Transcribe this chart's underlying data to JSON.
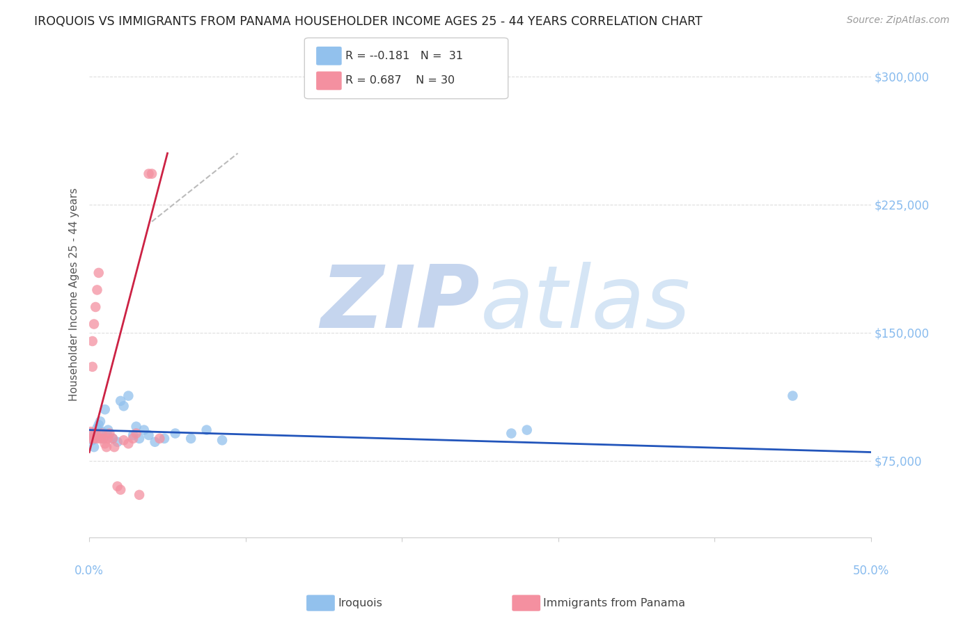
{
  "title": "IROQUOIS VS IMMIGRANTS FROM PANAMA HOUSEHOLDER INCOME AGES 25 - 44 YEARS CORRELATION CHART",
  "source": "Source: ZipAtlas.com",
  "ylabel": "Householder Income Ages 25 - 44 years",
  "yticks": [
    75000,
    150000,
    225000,
    300000
  ],
  "ytick_labels": [
    "$75,000",
    "$150,000",
    "$225,000",
    "$300,000"
  ],
  "xlim": [
    0.0,
    0.5
  ],
  "ylim": [
    30000,
    315000
  ],
  "blue_color": "#92C1ED",
  "pink_color": "#F490A0",
  "blue_line_color": "#2255BB",
  "pink_line_color": "#CC2244",
  "dash_color": "#BBBBBB",
  "watermark_zip": "ZIP",
  "watermark_atlas": "atlas",
  "watermark_color": "#D0DFF5",
  "background_color": "#FFFFFF",
  "grid_color": "#DDDDDD",
  "tick_color": "#88BBEE",
  "ylabel_color": "#555555",
  "title_color": "#222222",
  "source_color": "#999999",
  "legend_r_blue": "-0.181",
  "legend_n_blue": "31",
  "legend_r_pink": "0.687",
  "legend_n_pink": "30",
  "blue_x": [
    0.001,
    0.002,
    0.003,
    0.004,
    0.005,
    0.006,
    0.007,
    0.008,
    0.009,
    0.01,
    0.011,
    0.012,
    0.015,
    0.018,
    0.02,
    0.022,
    0.025,
    0.028,
    0.03,
    0.032,
    0.035,
    0.038,
    0.042,
    0.048,
    0.055,
    0.065,
    0.075,
    0.085,
    0.27,
    0.28,
    0.45
  ],
  "blue_y": [
    91000,
    87000,
    83000,
    89000,
    94000,
    96000,
    98000,
    92000,
    88000,
    105000,
    91000,
    93000,
    88000,
    86000,
    110000,
    107000,
    113000,
    90000,
    95000,
    88000,
    93000,
    90000,
    86000,
    88000,
    91000,
    88000,
    93000,
    87000,
    91000,
    93000,
    113000
  ],
  "pink_x": [
    0.001,
    0.001,
    0.002,
    0.002,
    0.003,
    0.003,
    0.004,
    0.004,
    0.005,
    0.005,
    0.006,
    0.007,
    0.008,
    0.009,
    0.01,
    0.011,
    0.012,
    0.013,
    0.015,
    0.016,
    0.018,
    0.02,
    0.022,
    0.025,
    0.028,
    0.03,
    0.032,
    0.038,
    0.04,
    0.045
  ],
  "pink_y": [
    92000,
    88000,
    130000,
    145000,
    155000,
    88000,
    165000,
    91000,
    175000,
    88000,
    185000,
    88000,
    91000,
    88000,
    85000,
    83000,
    88000,
    91000,
    88000,
    83000,
    60000,
    58000,
    87000,
    85000,
    88000,
    91000,
    55000,
    243000,
    243000,
    88000
  ],
  "blue_line_x": [
    0.0,
    0.5
  ],
  "blue_line_y": [
    93000,
    80000
  ],
  "pink_line_x": [
    0.0,
    0.05
  ],
  "pink_line_y": [
    80000,
    255000
  ],
  "dash_line_x": [
    0.04,
    0.095
  ],
  "dash_line_y": [
    215000,
    255000
  ]
}
